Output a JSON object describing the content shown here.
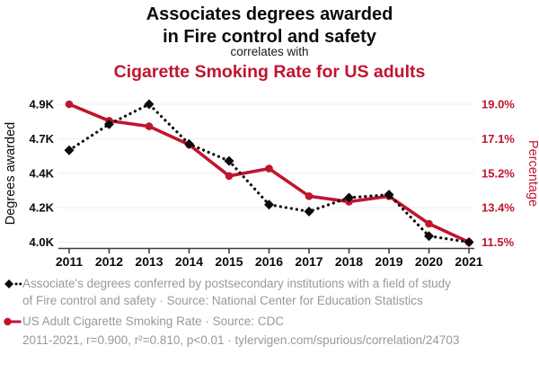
{
  "title": {
    "line1": "Associates degrees awarded",
    "line2": "in Fire control and safety",
    "connector": "correlates with",
    "subtitle": "Cigarette Smoking Rate for US adults"
  },
  "colors": {
    "accent_red": "#c0152f",
    "series_black": "#0b0b0b",
    "legend_gray": "#999999",
    "gridline": "#ededed",
    "axis": "#3d3d3d"
  },
  "chart_data": {
    "type": "line",
    "title": "Associates degrees awarded in Fire control and safety correlates with Cigarette Smoking Rate for US adults",
    "grid": "horizontal",
    "legend_position": "bottom",
    "x": [
      2011,
      2012,
      2013,
      2014,
      2015,
      2016,
      2017,
      2018,
      2019,
      2020,
      2021
    ],
    "x_axis": {
      "labels": [
        "2011",
        "2012",
        "2013",
        "2014",
        "2015",
        "2016",
        "2017",
        "2018",
        "2019",
        "2020",
        "2021"
      ]
    },
    "series": [
      {
        "name": "Associate's degrees conferred by postsecondary institutions with a field of study of Fire control and safety",
        "axis": "left",
        "style": "dotted-line-diamond-markers",
        "values": [
          4600,
          4770,
          4900,
          4640,
          4530,
          4245,
          4200,
          4290,
          4310,
          4040,
          4000
        ]
      },
      {
        "name": "US Adult Cigarette Smoking Rate",
        "axis": "right",
        "style": "solid-line-circle-markers",
        "values": [
          19.0,
          18.1,
          17.8,
          16.8,
          15.1,
          15.5,
          14.0,
          13.7,
          14.0,
          12.5,
          11.5
        ]
      }
    ],
    "left_axis": {
      "title": "Degrees awarded",
      "min": 4000,
      "max": 4900,
      "ticks": [
        {
          "value": 4000,
          "label": "4.0K"
        },
        {
          "value": 4225,
          "label": "4.2K"
        },
        {
          "value": 4450,
          "label": "4.4K"
        },
        {
          "value": 4675,
          "label": "4.7K"
        },
        {
          "value": 4900,
          "label": "4.9K"
        }
      ]
    },
    "right_axis": {
      "title": "Percentage",
      "min": 11.5,
      "max": 19.0,
      "ticks": [
        {
          "value": 11.5,
          "label": "11.5%"
        },
        {
          "value": 13.375,
          "label": "13.4%"
        },
        {
          "value": 15.25,
          "label": "15.2%"
        },
        {
          "value": 17.125,
          "label": "17.1%"
        },
        {
          "value": 19.0,
          "label": "19.0%"
        }
      ]
    }
  },
  "legend": {
    "degrees": "Associate's degrees conferred by postsecondary institutions with a field of study of Fire control and safety · Source: National Center for Education Statistics",
    "smoking": "US Adult Cigarette Smoking Rate · Source: CDC"
  },
  "footer": {
    "stats": "2011-2021, r=0.900, r²=0.810, p<0.01 · tylervigen.com/spurious/correlation/24703"
  }
}
